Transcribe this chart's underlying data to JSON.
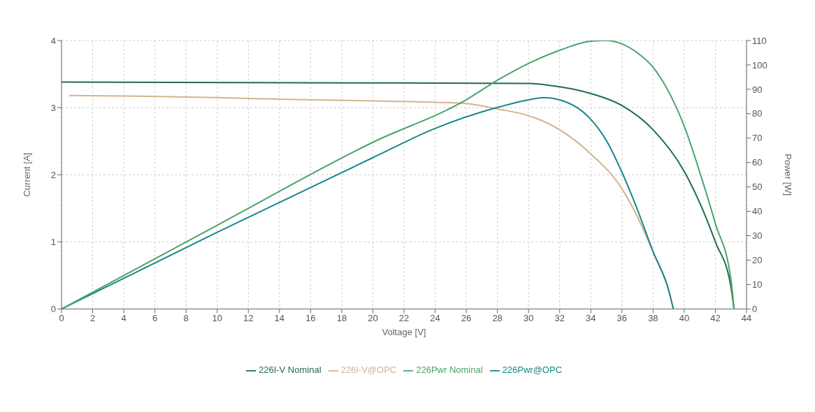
{
  "chart_data": {
    "type": "line",
    "xlabel": "Voltage [V]",
    "ylabel": "Current [A]",
    "y2label": "Power [W]",
    "xlim": [
      0,
      44
    ],
    "xticks": [
      0,
      2,
      4,
      6,
      8,
      10,
      12,
      14,
      16,
      18,
      20,
      22,
      24,
      26,
      28,
      30,
      32,
      34,
      36,
      38,
      40,
      42,
      44
    ],
    "ylim": [
      0,
      4
    ],
    "yticks": [
      0,
      1,
      2,
      3,
      4
    ],
    "y2lim": [
      0,
      110
    ],
    "y2ticks": [
      0,
      10,
      20,
      30,
      40,
      50,
      60,
      70,
      80,
      90,
      100,
      110
    ],
    "grid": true,
    "legend": "bottom",
    "marker": "none",
    "line_style": "solid",
    "series": [
      {
        "name": "226I-V@OPC",
        "color": "#d2b48c",
        "x": [
          0.5,
          5,
          10,
          15,
          20,
          24,
          26,
          28,
          30,
          32,
          34,
          36,
          37,
          38,
          39,
          39.3
        ],
        "values": [
          3.18,
          3.17,
          3.15,
          3.12,
          3.1,
          3.08,
          3.06,
          2.98,
          2.88,
          2.67,
          2.31,
          1.79,
          1.37,
          0.85,
          0.28,
          0
        ]
      },
      {
        "name": "226I-V Nominal",
        "color": "#1e6b52",
        "x": [
          0,
          15,
          30,
          32,
          34,
          36,
          38,
          40,
          41,
          42,
          43,
          43.2
        ],
        "values": [
          3.38,
          3.37,
          3.36,
          3.31,
          3.21,
          3.03,
          2.67,
          2.05,
          1.58,
          1.0,
          0.33,
          0
        ]
      },
      {
        "name": "226Pwr@OPC",
        "color": "#17878a",
        "axis": "y2",
        "x": [
          0,
          10,
          20,
          24,
          28,
          30,
          31,
          32,
          34,
          35,
          36,
          37,
          38,
          39,
          39.3
        ],
        "values": [
          0,
          31.4,
          62,
          74,
          82.6,
          85.7,
          86.6,
          85.7,
          77.7,
          69,
          56,
          40.6,
          23.4,
          7.7,
          0
        ]
      },
      {
        "name": "226Pwr Nominal",
        "color": "#4aa36a",
        "axis": "y2",
        "x": [
          0,
          10,
          20,
          26,
          28,
          30,
          32,
          34,
          35,
          36,
          37,
          38,
          39,
          40,
          41,
          42,
          43,
          43.2
        ],
        "values": [
          0,
          34.3,
          68.3,
          85.7,
          93.7,
          100.6,
          106,
          109.7,
          110,
          108.6,
          104.9,
          99,
          89,
          74.9,
          56,
          35,
          12,
          0
        ]
      }
    ]
  }
}
